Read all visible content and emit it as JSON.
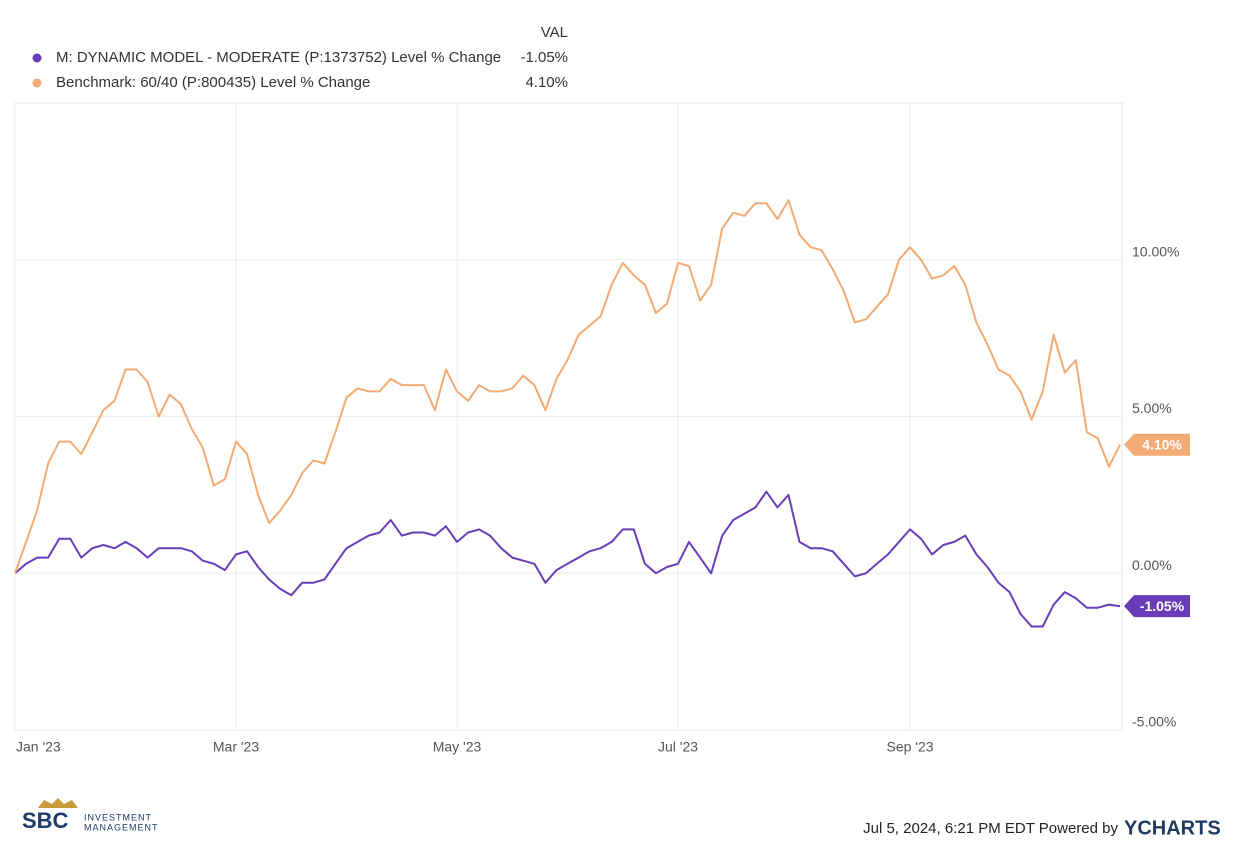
{
  "chart_data": {
    "type": "line",
    "legend_header": "VAL",
    "categories": [
      "Jan '23",
      null,
      null,
      null,
      null,
      null,
      null,
      null,
      null,
      null,
      null,
      null,
      null,
      null,
      null,
      null,
      null,
      null,
      null,
      null,
      "Mar '23",
      null,
      null,
      null,
      null,
      null,
      null,
      null,
      null,
      null,
      null,
      null,
      null,
      null,
      null,
      null,
      null,
      null,
      null,
      null,
      "May '23",
      null,
      null,
      null,
      null,
      null,
      null,
      null,
      null,
      null,
      null,
      null,
      null,
      null,
      null,
      null,
      null,
      null,
      null,
      null,
      "Jul '23",
      null,
      null,
      null,
      null,
      null,
      null,
      null,
      null,
      null,
      null,
      null,
      null,
      null,
      null,
      null,
      null,
      null,
      null,
      null,
      null,
      "Sep '23",
      null,
      null,
      null,
      null,
      null,
      null,
      null,
      null,
      null,
      null,
      null,
      null,
      null,
      null,
      null,
      null,
      null,
      null,
      null
    ],
    "series": [
      {
        "name": "M: DYNAMIC MODEL - MODERATE (P:1373752) Level % Change",
        "color": "#6a3db8",
        "end_label": "-1.05%",
        "values": [
          0,
          0.3,
          0.5,
          0.5,
          1.1,
          1.1,
          0.5,
          0.8,
          0.9,
          0.8,
          1.0,
          0.8,
          0.5,
          0.8,
          0.8,
          0.8,
          0.7,
          0.4,
          0.3,
          0.1,
          0.6,
          0.7,
          0.2,
          -0.2,
          -0.5,
          -0.7,
          -0.3,
          -0.3,
          -0.2,
          0.3,
          0.8,
          1.0,
          1.2,
          1.3,
          1.7,
          1.2,
          1.3,
          1.3,
          1.2,
          1.5,
          1.0,
          1.3,
          1.4,
          1.2,
          0.8,
          0.5,
          0.4,
          0.3,
          -0.3,
          0.1,
          0.3,
          0.5,
          0.7,
          0.8,
          1.0,
          1.4,
          1.4,
          0.3,
          0.0,
          0.2,
          0.3,
          1.0,
          0.5,
          0.0,
          1.2,
          1.7,
          1.9,
          2.1,
          2.6,
          2.1,
          2.5,
          1.0,
          0.8,
          0.8,
          0.7,
          0.3,
          -0.1,
          0.0,
          0.3,
          0.6,
          1.0,
          1.4,
          1.1,
          0.6,
          0.9,
          1.0,
          1.2,
          0.6,
          0.2,
          -0.3,
          -0.6,
          -1.3,
          -1.7,
          -1.7,
          -1.0,
          -0.6,
          -0.8,
          -1.1,
          -1.1,
          -1.0,
          -1.05
        ]
      },
      {
        "name": "Benchmark: 60/40 (P:800435) Level % Change",
        "color": "#f2ab74",
        "end_label": "4.10%",
        "values": [
          0,
          1.0,
          2.0,
          3.5,
          4.2,
          4.2,
          3.8,
          4.5,
          5.2,
          5.5,
          6.5,
          6.5,
          6.1,
          5.0,
          5.7,
          5.4,
          4.6,
          4.0,
          2.8,
          3.0,
          4.2,
          3.8,
          2.5,
          1.6,
          2.0,
          2.5,
          3.2,
          3.6,
          3.5,
          4.5,
          5.6,
          5.9,
          5.8,
          5.8,
          6.2,
          6.0,
          6.0,
          6.0,
          5.2,
          6.5,
          5.8,
          5.5,
          6.0,
          5.8,
          5.8,
          5.9,
          6.3,
          6.0,
          5.2,
          6.2,
          6.8,
          7.6,
          7.9,
          8.2,
          9.2,
          9.9,
          9.5,
          9.2,
          8.3,
          8.6,
          9.9,
          9.8,
          8.7,
          9.2,
          11.0,
          11.5,
          11.4,
          11.8,
          11.8,
          11.3,
          11.9,
          10.8,
          10.4,
          10.3,
          9.7,
          9.0,
          8.0,
          8.1,
          8.5,
          8.9,
          10.0,
          10.4,
          10.0,
          9.4,
          9.5,
          9.8,
          9.2,
          8.0,
          7.3,
          6.5,
          6.3,
          5.8,
          4.9,
          5.8,
          7.6,
          6.4,
          6.8,
          4.5,
          4.3,
          3.4,
          4.1
        ]
      }
    ],
    "ylim": [
      -5,
      15
    ],
    "yticks": [
      {
        "value": -5,
        "label": "-5.00%"
      },
      {
        "value": 0,
        "label": "0.00%"
      },
      {
        "value": 5,
        "label": "5.00%"
      },
      {
        "value": 10,
        "label": "10.00%"
      }
    ],
    "grid": true
  },
  "footer": {
    "timestamp": "Jul 5, 2024, 6:21 PM EDT Powered by",
    "brand": "YCHARTS"
  },
  "logo": {
    "name": "SBC",
    "line1": "INVESTMENT",
    "line2": "MANAGEMENT"
  }
}
